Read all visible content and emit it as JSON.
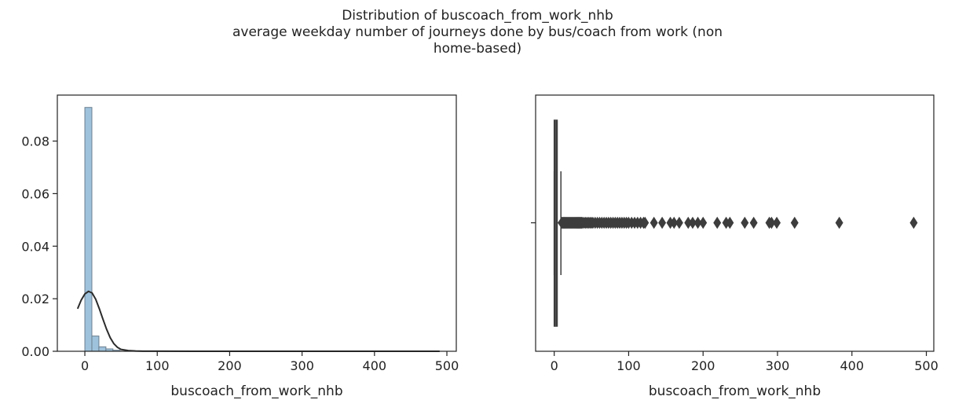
{
  "figure": {
    "title_lines": [
      "Distribution of buscoach_from_work_nhb",
      "average weekday number of journeys done by bus/coach from work (non",
      "home-based)"
    ]
  },
  "chart_data": [
    {
      "type": "bar",
      "subtype": "histogram-with-kde",
      "xlabel": "buscoach_from_work_nhb",
      "ylabel": "",
      "xlim": [
        -38,
        513
      ],
      "ylim": [
        0,
        0.0975
      ],
      "xticks": [
        0,
        100,
        200,
        300,
        400,
        500
      ],
      "yticks": [
        0.0,
        0.02,
        0.04,
        0.06,
        0.08
      ],
      "ytick_labels": [
        "0.00",
        "0.02",
        "0.04",
        "0.06",
        "0.08"
      ],
      "bin_width": 9.7,
      "bins_start": [
        0,
        9.7,
        19.4,
        29.1,
        38.8
      ],
      "values": [
        0.0928,
        0.0058,
        0.0017,
        0.0009,
        0.0004
      ],
      "kde": {
        "x": [
          -10,
          -5,
          0,
          5,
          10,
          15,
          20,
          25,
          30,
          35,
          40,
          45,
          50,
          60,
          70,
          80,
          100,
          150,
          200,
          300,
          400,
          490
        ],
        "y": [
          0.0162,
          0.0195,
          0.0218,
          0.0228,
          0.0222,
          0.0198,
          0.0162,
          0.0122,
          0.0084,
          0.0052,
          0.0029,
          0.0015,
          0.0007,
          0.00025,
          0.0001,
          5e-05,
          2e-05,
          1e-05,
          1e-05,
          1e-05,
          1e-05,
          1e-05
        ]
      },
      "grid": false,
      "bar_color": "#9ec2dc",
      "bar_edge_color": "#6b7f8f",
      "kde_color": "#2b2b2b"
    },
    {
      "type": "boxplot",
      "orientation": "horizontal",
      "xlabel": "buscoach_from_work_nhb",
      "xlim": [
        -25,
        510
      ],
      "xticks": [
        0,
        100,
        200,
        300,
        400,
        500
      ],
      "box": {
        "q1": 0,
        "median": 2,
        "q3": 4,
        "whisker_low": 0,
        "whisker_high": 9
      },
      "outliers": [
        10,
        11,
        12,
        13,
        14,
        15,
        16,
        17,
        18,
        19,
        20,
        21,
        22,
        23,
        24,
        25,
        26,
        27,
        28,
        29,
        30,
        31,
        32,
        33,
        34,
        35,
        36,
        37,
        38,
        40,
        42,
        44,
        46,
        48,
        50,
        52,
        55,
        58,
        61,
        64,
        67,
        70,
        73,
        76,
        79,
        82,
        85,
        88,
        91,
        94,
        97,
        100,
        104,
        108,
        112,
        116,
        120,
        122,
        134,
        145,
        156,
        161,
        168,
        180,
        186,
        193,
        200,
        219,
        231,
        236,
        256,
        268,
        289,
        292,
        299,
        323,
        383,
        483
      ],
      "grid": false,
      "box_color": "#3d3d3d"
    }
  ]
}
